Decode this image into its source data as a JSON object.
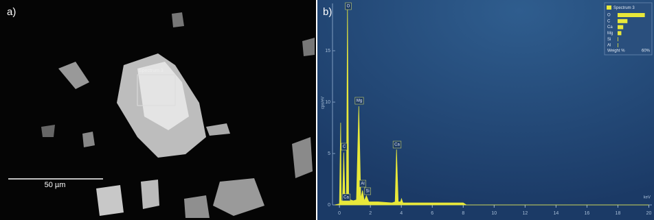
{
  "image": {
    "panel_label": "a)",
    "scale_bar": "50 µm",
    "region_label": "Spectrum 3"
  },
  "chart_data": [
    {
      "type": "line",
      "panel_label": "b)",
      "xlabel": "keV",
      "ylabel": "cps/eV",
      "x": [
        -0.3,
        0.0,
        0.08,
        0.12,
        0.2,
        0.28,
        0.36,
        0.45,
        0.52,
        0.6,
        0.7,
        0.9,
        1.1,
        1.25,
        1.38,
        1.49,
        1.6,
        1.74,
        1.9,
        2.5,
        3.4,
        3.6,
        3.69,
        3.8,
        3.95,
        4.01,
        4.1,
        5,
        6,
        7,
        8,
        8.2,
        20
      ],
      "series": [
        {
          "name": "Spectrum 3",
          "color": "#e8e83a",
          "values": [
            0,
            0.1,
            8,
            0.3,
            0.5,
            5.1,
            0.6,
            0.8,
            19.4,
            0.8,
            0.5,
            0.4,
            0.5,
            9.6,
            0.6,
            1.4,
            0.4,
            0.9,
            0.3,
            0.3,
            0.2,
            0.3,
            5.4,
            0.3,
            0.3,
            0.6,
            0.2,
            0.2,
            0.2,
            0.2,
            0.2,
            0,
            0
          ]
        }
      ],
      "annotations": [
        "O",
        "C",
        "Ca",
        "Mg",
        "Al",
        "Si",
        "Ca"
      ],
      "xlim": [
        -0.45,
        20.2
      ],
      "ylim": [
        0,
        19.6
      ],
      "xticks": [
        0,
        2,
        4,
        6,
        8,
        10,
        12,
        14,
        16,
        18,
        20
      ],
      "yticks": [
        0,
        5,
        10,
        15
      ]
    },
    {
      "type": "bar",
      "orientation": "horizontal",
      "series_name": "Spectrum 3",
      "color": "#e8e83a",
      "categories": [
        "O",
        "C",
        "Ca",
        "Mg",
        "Si",
        "Al"
      ],
      "values": [
        58,
        21,
        12,
        8,
        0.5,
        0.5
      ],
      "xlabel": "Weight %",
      "xlim": [
        0,
        60
      ],
      "xticks": [
        {
          "value": 60,
          "label": "60%"
        }
      ]
    }
  ]
}
